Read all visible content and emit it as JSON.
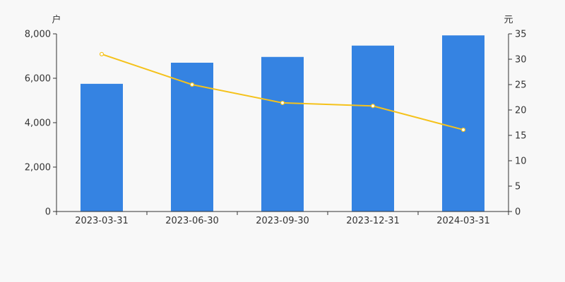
{
  "chart_data": {
    "type": "bar",
    "categories": [
      "2023-03-31",
      "2023-06-30",
      "2023-09-30",
      "2023-12-31",
      "2024-03-31"
    ],
    "series": [
      {
        "type": "bar",
        "axis": "left",
        "color": "#3583e2",
        "values": [
          5750,
          6700,
          6960,
          7470,
          7930
        ]
      },
      {
        "type": "line",
        "axis": "right",
        "color": "#f5c21b",
        "values": [
          31.0,
          25.0,
          21.4,
          20.8,
          16.1
        ]
      }
    ],
    "left_axis": {
      "unit": "户",
      "range": [
        0,
        8000
      ],
      "ticks": [
        0,
        2000,
        4000,
        6000,
        8000
      ],
      "tick_labels": [
        "0",
        "2,000",
        "4,000",
        "6,000",
        "8,000"
      ]
    },
    "right_axis": {
      "unit": "元",
      "range": [
        0,
        35
      ],
      "ticks": [
        0,
        5,
        10,
        15,
        20,
        25,
        30,
        35
      ],
      "tick_labels": [
        "0",
        "5",
        "10",
        "15",
        "20",
        "25",
        "30",
        "35"
      ]
    },
    "grid": false,
    "legend": "none"
  }
}
